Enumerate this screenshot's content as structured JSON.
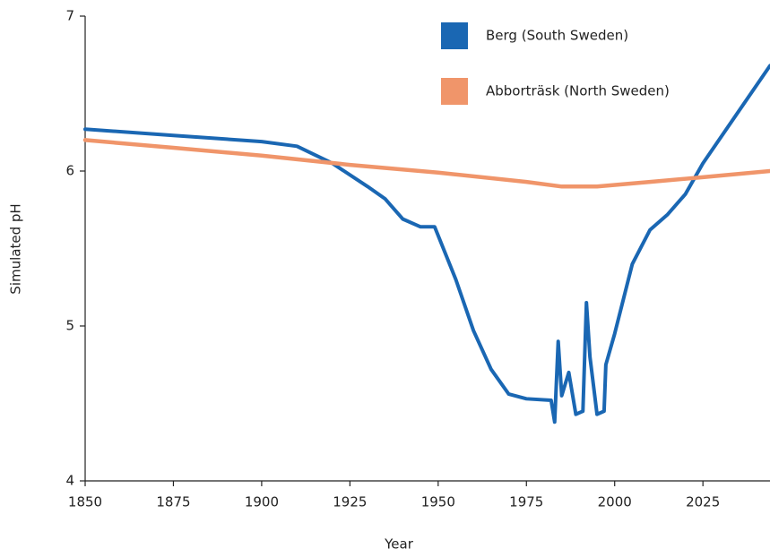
{
  "chart_data": {
    "type": "line",
    "xlabel": "Year",
    "ylabel": "Simulated pH",
    "xlim": [
      1850,
      2044
    ],
    "xticks": [
      1850,
      1875,
      1900,
      1925,
      1950,
      1975,
      2000,
      2025
    ],
    "ylim": [
      4,
      7
    ],
    "yticks": [
      4,
      5,
      6,
      7
    ],
    "legend": "top-right",
    "series": [
      {
        "name": "Berg (South Sweden)",
        "color": "#1a67b3",
        "x": [
          1850,
          1875,
          1900,
          1910,
          1920,
          1930,
          1935,
          1940,
          1945,
          1949,
          1955,
          1960,
          1965,
          1970,
          1975,
          1982,
          1983,
          1984,
          1985,
          1987,
          1989,
          1991,
          1992,
          1993,
          1995,
          1997,
          1997.5,
          2000,
          2005,
          2010,
          2015,
          2020,
          2025,
          2044
        ],
        "values": [
          6.27,
          6.23,
          6.19,
          6.16,
          6.05,
          5.9,
          5.82,
          5.69,
          5.64,
          5.64,
          5.3,
          4.97,
          4.72,
          4.56,
          4.53,
          4.52,
          4.38,
          4.9,
          4.55,
          4.7,
          4.43,
          4.45,
          5.15,
          4.8,
          4.43,
          4.45,
          4.75,
          4.95,
          5.4,
          5.62,
          5.72,
          5.85,
          6.05,
          6.68
        ]
      },
      {
        "name": "Abborträsk (North Sweden)",
        "color": "#f0956a",
        "x": [
          1850,
          1875,
          1900,
          1925,
          1950,
          1975,
          1985,
          1995,
          2010,
          2025,
          2044
        ],
        "values": [
          6.2,
          6.15,
          6.1,
          6.04,
          5.99,
          5.93,
          5.9,
          5.9,
          5.93,
          5.96,
          6.0
        ]
      }
    ]
  }
}
